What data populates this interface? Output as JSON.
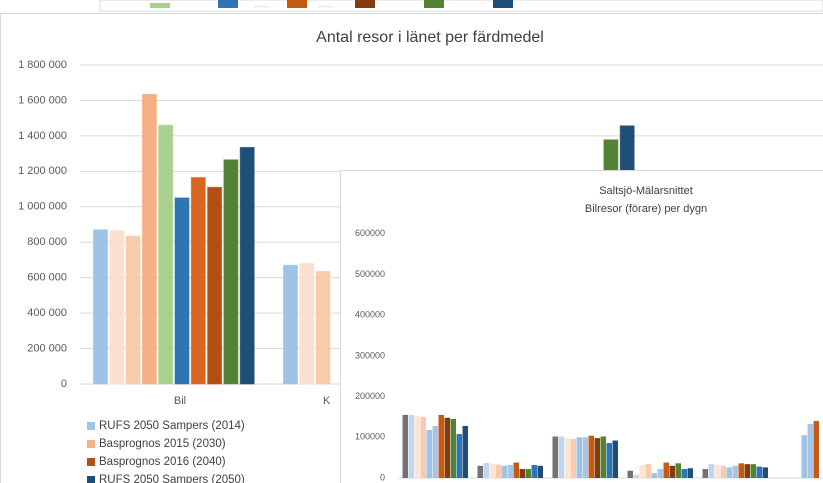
{
  "chart_data": [
    {
      "type": "bar",
      "title": "Antal resor i länet per färdmedel",
      "categories": [
        "Bil",
        "K",
        null
      ],
      "series": [
        {
          "name": "RUFS 2050 Sampers (2014)",
          "color": "#9dc3e6",
          "values": [
            870000,
            670000,
            null
          ]
        },
        {
          "color": "#fbe0d0",
          "values": [
            865000,
            680000,
            null
          ]
        },
        {
          "color": "#f8cbad",
          "values": [
            835000,
            635000,
            null
          ]
        },
        {
          "name": "Basprognos 2015 (2030)",
          "color": "#f4b183",
          "values": [
            1635000,
            null,
            null
          ]
        },
        {
          "color": "#a9d18e",
          "values": [
            1460000,
            null,
            null
          ]
        },
        {
          "color": "#2e75b6",
          "values": [
            1050000,
            null,
            null
          ]
        },
        {
          "color": "#d9661f",
          "values": [
            1165000,
            null,
            null
          ]
        },
        {
          "name": "Basprognos 2016 (2040)",
          "color": "#b4500f",
          "values": [
            1110000,
            null,
            null
          ]
        },
        {
          "color": "#548235",
          "values": [
            1265000,
            null,
            1378000
          ]
        },
        {
          "name": "RUFS 2050 Sampers (2050)",
          "color": "#1f4e79",
          "values": [
            1335000,
            null,
            1457000
          ]
        }
      ],
      "ylim": [
        0,
        1800000
      ],
      "yticks": [
        0,
        {
          "value": 200000,
          "label": "200 000"
        },
        {
          "value": 400000,
          "label": "400 000"
        },
        {
          "value": 600000,
          "label": "600 000"
        },
        {
          "value": 800000,
          "label": "800 000"
        },
        {
          "value": 1000000,
          "label": "1 000 000"
        },
        {
          "value": 1200000,
          "label": "1 200 000"
        },
        {
          "value": 1400000,
          "label": "1 400 000"
        },
        {
          "value": 1600000,
          "label": "1 600 000"
        },
        {
          "value": 1800000,
          "label": "1 800 000"
        }
      ],
      "grid": true
    },
    {
      "type": "bar",
      "title": [
        "Saltsjö-Mälarsnittet",
        "Bilresor (förare)  per dygn"
      ],
      "categories": [
        null,
        null,
        null,
        null,
        null,
        null
      ],
      "series": [
        {
          "color": "#767171",
          "values": [
            155000,
            30000,
            102000,
            18000,
            22000,
            null
          ]
        },
        {
          "color": "#bdd7ee",
          "values": [
            155000,
            37000,
            102000,
            8000,
            34000,
            null
          ]
        },
        {
          "color": "#fbe5d6",
          "values": [
            152000,
            35000,
            98000,
            32000,
            32000,
            null
          ]
        },
        {
          "color": "#f8cbad",
          "values": [
            150000,
            33000,
            96000,
            34000,
            30000,
            null
          ]
        },
        {
          "color": "#9dc3e6",
          "values": [
            118000,
            30000,
            100000,
            12000,
            26000,
            105000
          ]
        },
        {
          "color": "#a9c4e6",
          "values": [
            128000,
            32000,
            100000,
            22000,
            30000,
            133000
          ]
        },
        {
          "color": "#c55a11",
          "values": [
            155000,
            38000,
            104000,
            38000,
            36000,
            140000
          ]
        },
        {
          "color": "#843c0c",
          "values": [
            148000,
            22000,
            98000,
            30000,
            34000,
            null
          ]
        },
        {
          "color": "#548235",
          "values": [
            145000,
            22000,
            102000,
            36000,
            34000,
            null
          ]
        },
        {
          "color": "#2e75b6",
          "values": [
            108000,
            32000,
            86000,
            22000,
            28000,
            null
          ]
        },
        {
          "color": "#1f4e79",
          "values": [
            128000,
            30000,
            92000,
            24000,
            26000,
            null
          ]
        }
      ],
      "ylim": [
        0,
        650000
      ],
      "yticks": [
        0,
        100000,
        200000,
        300000,
        400000,
        500000,
        600000
      ],
      "grid": false
    }
  ]
}
